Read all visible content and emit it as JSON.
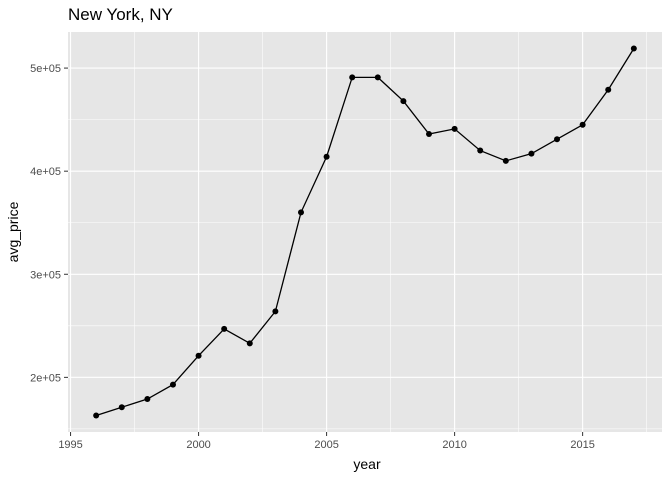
{
  "chart_data": {
    "type": "line",
    "title": "New York, NY",
    "xlabel": "year",
    "ylabel": "avg_price",
    "xlim": [
      1994.9,
      2018.1
    ],
    "ylim": [
      147000,
      535000
    ],
    "x_major_ticks": [
      1995,
      2000,
      2005,
      2010,
      2015
    ],
    "x_tick_labels": [
      "1995",
      "2000",
      "2005",
      "2010",
      "2015"
    ],
    "y_major_ticks": [
      200000,
      300000,
      400000,
      500000
    ],
    "y_tick_labels": [
      "2e+05",
      "3e+05",
      "4e+05",
      "5e+05"
    ],
    "x": [
      1996,
      1997,
      1998,
      1999,
      2000,
      2001,
      2002,
      2003,
      2004,
      2005,
      2006,
      2007,
      2008,
      2009,
      2010,
      2011,
      2012,
      2013,
      2014,
      2015,
      2016,
      2017
    ],
    "y": [
      163000,
      171000,
      179000,
      193000,
      221000,
      247000,
      233000,
      264000,
      360000,
      414000,
      491000,
      491000,
      468000,
      436000,
      441000,
      420000,
      410000,
      417000,
      431000,
      445000,
      479000,
      519000
    ],
    "grid": true,
    "panel_background": "#e6e6e6",
    "line_color": "#000000",
    "point_color": "#000000"
  }
}
